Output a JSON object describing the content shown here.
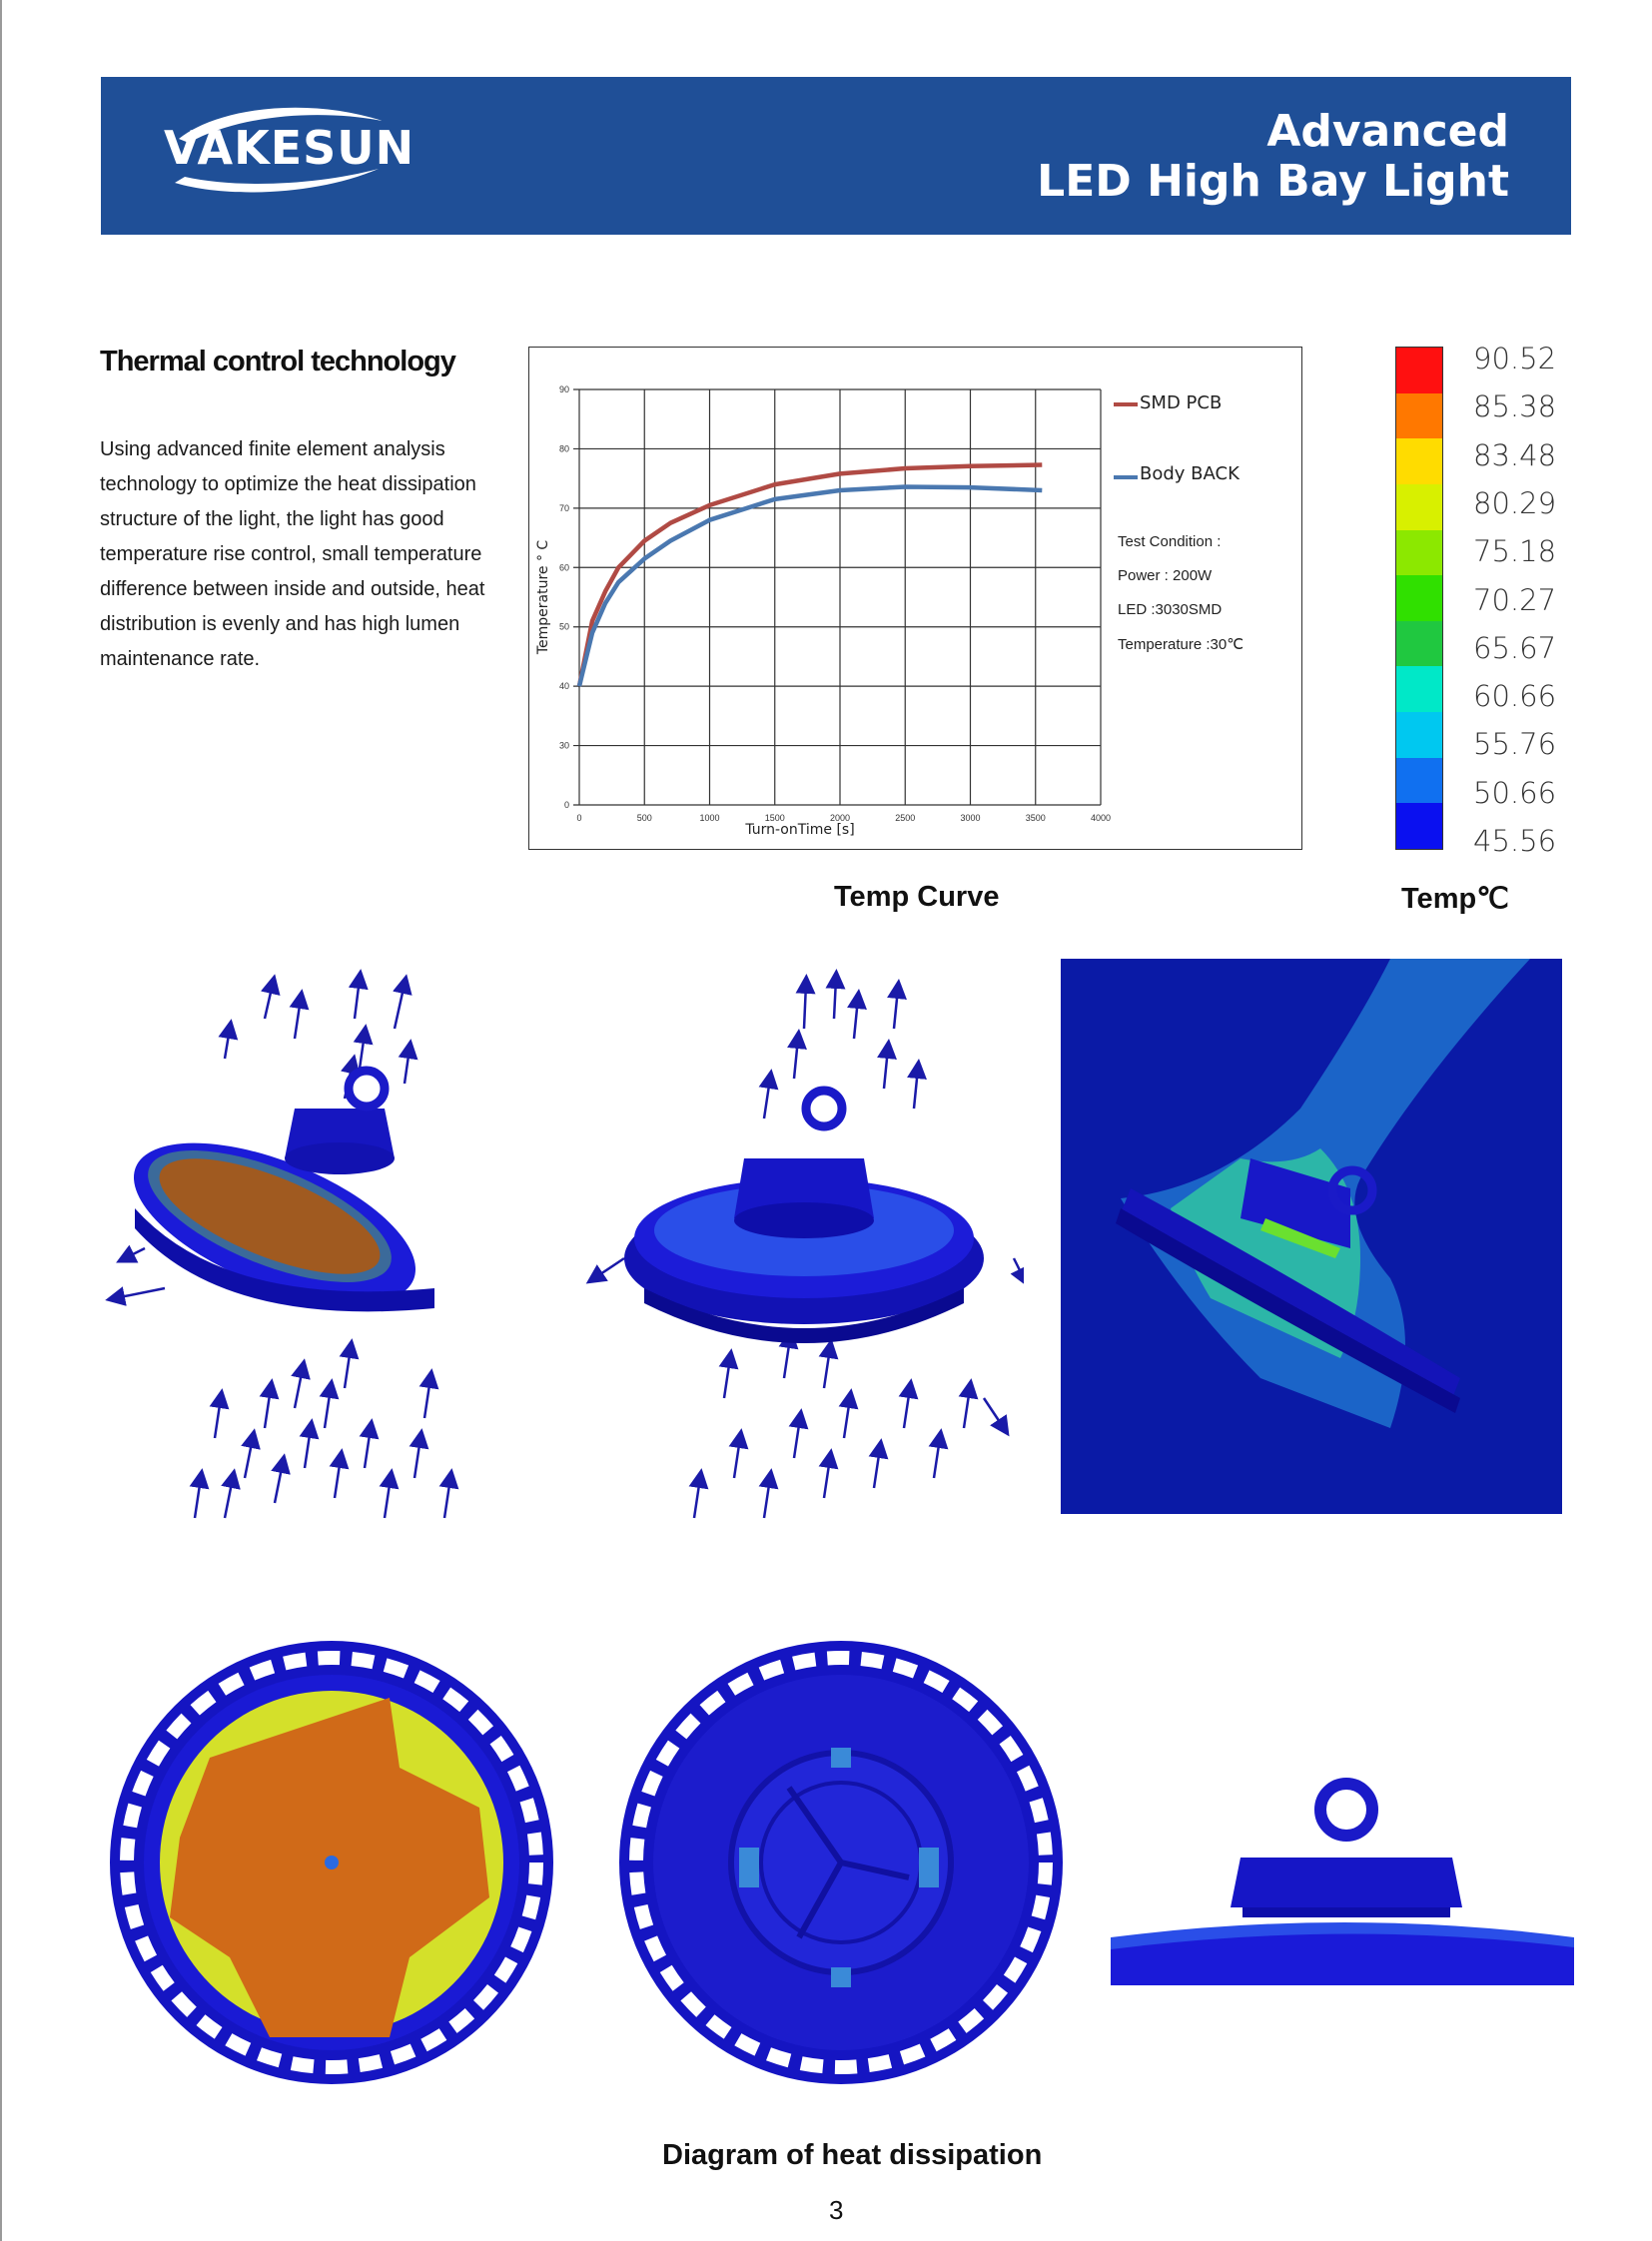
{
  "header": {
    "logo_text": "VAKESUN",
    "title_line1": "Advanced",
    "title_line2": "LED High Bay Light",
    "color": "#1f4f97"
  },
  "section": {
    "title": "Thermal control technology",
    "paragraph_lines": [
      "Using advanced finite element analysis",
      "technology to optimize the heat dissipation",
      "structure of the light, the light has good",
      "temperature rise control, small temperature",
      "difference between inside and outside, heat",
      "distribution is evenly and has high lumen",
      "maintenance rate."
    ]
  },
  "chart_data": {
    "type": "line",
    "title": "Temp Curve",
    "xlabel": "Turn-onTime [s]",
    "ylabel": "Temperature ° C",
    "xlim": [
      0,
      4000
    ],
    "ylim": [
      0,
      90
    ],
    "x_ticks": [
      "0",
      "500",
      "1000",
      "1500",
      "2000",
      "2500",
      "3000",
      "3500",
      "4000"
    ],
    "y_ticks": [
      "0",
      "30",
      "40",
      "50",
      "60",
      "70",
      "80",
      "90"
    ],
    "grid": true,
    "legend_position": "right",
    "series": [
      {
        "name": "SMD PCB",
        "color": "#b04a44",
        "x": [
          0,
          100,
          200,
          300,
          500,
          700,
          1000,
          1500,
          2000,
          2500,
          3000,
          3550
        ],
        "y": [
          40,
          51,
          56,
          60,
          64.5,
          67.5,
          70.5,
          74,
          75.8,
          76.7,
          77.1,
          77.3
        ]
      },
      {
        "name": "Body BACK",
        "color": "#4a78b0",
        "x": [
          0,
          100,
          200,
          300,
          500,
          700,
          1000,
          1500,
          2000,
          2500,
          3000,
          3550
        ],
        "y": [
          40,
          49,
          54,
          57.5,
          61.5,
          64.5,
          68,
          71.5,
          73,
          73.6,
          73.5,
          73
        ]
      }
    ],
    "test_condition": [
      "Test Condition :",
      "Power : 200W",
      "LED :3030SMD",
      "Temperature :30℃"
    ]
  },
  "colorbar": {
    "caption": "Temp℃",
    "labels": [
      "90.52",
      "85.38",
      "83.48",
      "80.29",
      "75.18",
      "70.27",
      "65.67",
      "60.66",
      "55.76",
      "50.66",
      "45.56"
    ],
    "colors": [
      "#ff1010",
      "#ff7800",
      "#ffdc00",
      "#d8f000",
      "#8ce800",
      "#30e000",
      "#20c840",
      "#00e8c8",
      "#00c8f0",
      "#1070f0",
      "#0a10f0"
    ]
  },
  "captions": {
    "heat_diagram": "Diagram of heat dissipation"
  },
  "page_number": "3"
}
